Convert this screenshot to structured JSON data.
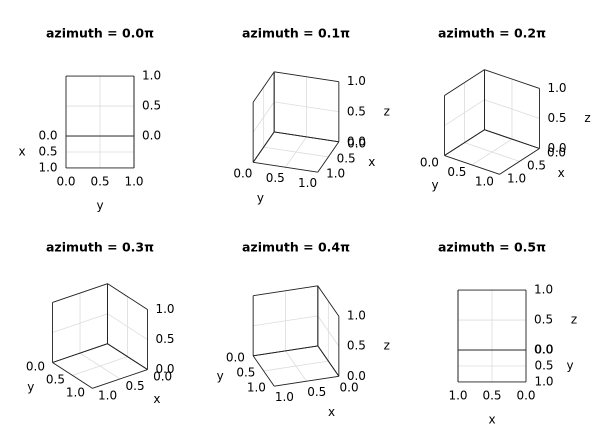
{
  "chart_data": [
    {
      "type": "axes3d",
      "title": "azimuth = 0.0π",
      "azimuth": 0.0,
      "xlabel": "x",
      "ylabel": "y",
      "xlim": [
        0,
        1
      ],
      "ylim": [
        0,
        1
      ],
      "zlim": [
        0,
        1
      ],
      "xticks": [
        {
          "value": 0,
          "label": "0.0"
        },
        {
          "value": 0.5,
          "label": "0.5"
        },
        {
          "value": 1,
          "label": "1.0"
        }
      ],
      "yticks": [
        {
          "value": 0,
          "label": "0.0"
        },
        {
          "value": 0.5,
          "label": "0.5"
        },
        {
          "value": 1,
          "label": "1.0"
        }
      ],
      "zticks": [
        {
          "value": 0,
          "label": "0.0"
        },
        {
          "value": 0.5,
          "label": "0.5"
        },
        {
          "value": 1,
          "label": "1.0"
        }
      ]
    },
    {
      "type": "axes3d",
      "title": "azimuth = 0.1π",
      "azimuth": 0.1,
      "xlabel": "x",
      "ylabel": "y",
      "zlabel": "z",
      "xlim": [
        0,
        1
      ],
      "ylim": [
        0,
        1
      ],
      "zlim": [
        0,
        1
      ],
      "xticks": [
        {
          "value": 0,
          "label": "0.0"
        },
        {
          "value": 0.5,
          "label": "0.5"
        },
        {
          "value": 1,
          "label": "1.0"
        }
      ],
      "yticks": [
        {
          "value": 0,
          "label": "0.0"
        },
        {
          "value": 0.5,
          "label": "0.5"
        },
        {
          "value": 1,
          "label": "1.0"
        }
      ],
      "zticks": [
        {
          "value": 0,
          "label": "0.0"
        },
        {
          "value": 0.5,
          "label": "0.5"
        },
        {
          "value": 1,
          "label": "1.0"
        }
      ]
    },
    {
      "type": "axes3d",
      "title": "azimuth = 0.2π",
      "azimuth": 0.2,
      "xlabel": "x",
      "ylabel": "y",
      "zlabel": "z",
      "xlim": [
        0,
        1
      ],
      "ylim": [
        0,
        1
      ],
      "zlim": [
        0,
        1
      ],
      "xticks": [
        {
          "value": 0,
          "label": "0.0"
        },
        {
          "value": 0.5,
          "label": "0.5"
        },
        {
          "value": 1,
          "label": "1.0"
        }
      ],
      "yticks": [
        {
          "value": 0,
          "label": "0.0"
        },
        {
          "value": 0.5,
          "label": "0.5"
        },
        {
          "value": 1,
          "label": "1.0"
        }
      ],
      "zticks": [
        {
          "value": 0,
          "label": "0.0"
        },
        {
          "value": 0.5,
          "label": "0.5"
        },
        {
          "value": 1,
          "label": "1.0"
        }
      ]
    },
    {
      "type": "axes3d",
      "title": "azimuth = 0.3π",
      "azimuth": 0.3,
      "xlabel": "x",
      "ylabel": "y",
      "xlim": [
        0,
        1
      ],
      "ylim": [
        0,
        1
      ],
      "zlim": [
        0,
        1
      ],
      "xticks": [
        {
          "value": 0,
          "label": "0.0"
        },
        {
          "value": 0.5,
          "label": "0.5"
        },
        {
          "value": 1,
          "label": "1.0"
        }
      ],
      "yticks": [
        {
          "value": 0,
          "label": "0.0"
        },
        {
          "value": 0.5,
          "label": "0.5"
        },
        {
          "value": 1,
          "label": "1.0"
        }
      ],
      "zticks": [
        {
          "value": 0,
          "label": "0.0"
        },
        {
          "value": 0.5,
          "label": "0.5"
        },
        {
          "value": 1,
          "label": "1.0"
        }
      ]
    },
    {
      "type": "axes3d",
      "title": "azimuth = 0.4π",
      "azimuth": 0.4,
      "xlabel": "x",
      "ylabel": "y",
      "zlabel": "z",
      "xlim": [
        0,
        1
      ],
      "ylim": [
        0,
        1
      ],
      "zlim": [
        0,
        1
      ],
      "xticks": [
        {
          "value": 0,
          "label": "0.0"
        },
        {
          "value": 0.5,
          "label": "0.5"
        },
        {
          "value": 1,
          "label": "1.0"
        }
      ],
      "yticks": [
        {
          "value": 0,
          "label": "0.0"
        },
        {
          "value": 0.5,
          "label": "0.5"
        },
        {
          "value": 1,
          "label": "1.0"
        }
      ],
      "zticks": [
        {
          "value": 0,
          "label": "0.0"
        },
        {
          "value": 0.5,
          "label": "0.5"
        },
        {
          "value": 1,
          "label": "1.0"
        }
      ]
    },
    {
      "type": "axes3d",
      "title": "azimuth = 0.5π",
      "azimuth": 0.5,
      "xlabel": "x",
      "ylabel": "y",
      "zlabel": "z",
      "xlim": [
        0,
        1
      ],
      "ylim": [
        0,
        1
      ],
      "zlim": [
        0,
        1
      ],
      "xticks": [
        {
          "value": 0,
          "label": "0.0"
        },
        {
          "value": 0.5,
          "label": "0.5"
        },
        {
          "value": 1,
          "label": "1.0"
        }
      ],
      "yticks": [
        {
          "value": 0,
          "label": "0.0"
        },
        {
          "value": 0.5,
          "label": "0.5"
        },
        {
          "value": 1,
          "label": "1.0"
        }
      ],
      "zticks": [
        {
          "value": 0,
          "label": "0.0"
        },
        {
          "value": 0.5,
          "label": "0.5"
        },
        {
          "value": 1,
          "label": "1.0"
        }
      ]
    }
  ]
}
